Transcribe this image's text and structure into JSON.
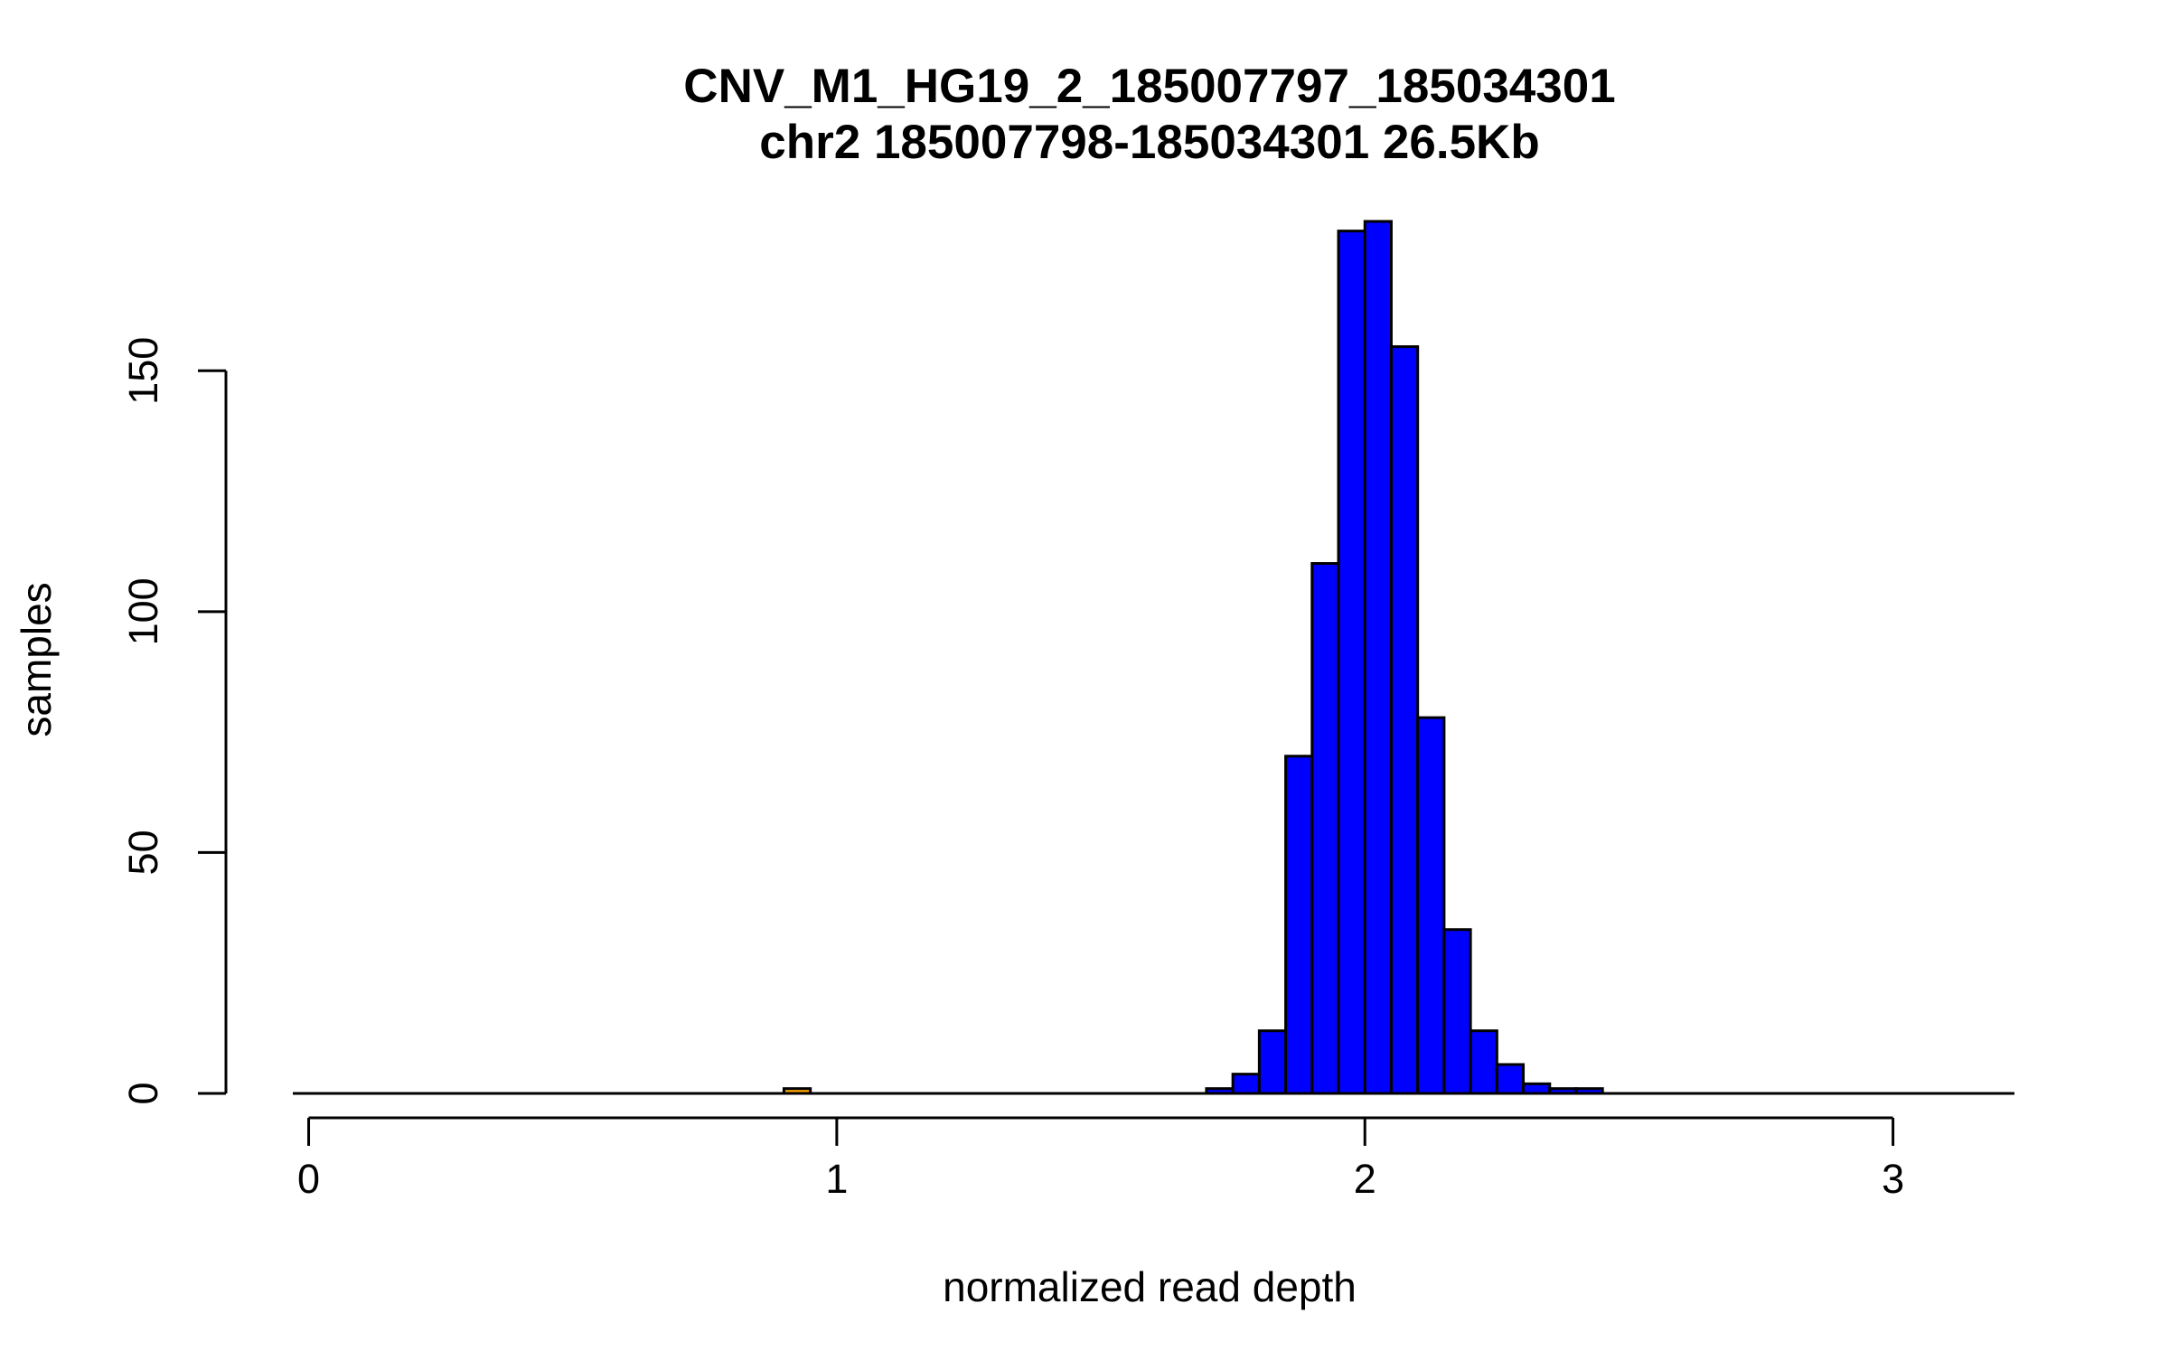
{
  "chart_data": {
    "type": "bar",
    "title": "CNV_M1_HG19_2_185007797_185034301",
    "subtitle": "chr2 185007798-185034301 26.5Kb",
    "xlabel": "normalized read depth",
    "ylabel": "samples",
    "xlim": [
      -0.03,
      3.23
    ],
    "ylim": [
      0,
      181
    ],
    "x_ticks": [
      "0",
      "1",
      "2",
      "3"
    ],
    "y_ticks": [
      "0",
      "50",
      "100",
      "150"
    ],
    "grid": false,
    "bin_width": 0.05,
    "series": [
      {
        "color": "#0000ff",
        "bins": [
          {
            "x0": 1.7,
            "x1": 1.75,
            "count": 1
          },
          {
            "x0": 1.75,
            "x1": 1.8,
            "count": 4
          },
          {
            "x0": 1.8,
            "x1": 1.85,
            "count": 13
          },
          {
            "x0": 1.85,
            "x1": 1.9,
            "count": 70
          },
          {
            "x0": 1.9,
            "x1": 1.95,
            "count": 110
          },
          {
            "x0": 1.95,
            "x1": 2.0,
            "count": 179
          },
          {
            "x0": 2.0,
            "x1": 2.05,
            "count": 181
          },
          {
            "x0": 2.05,
            "x1": 2.1,
            "count": 155
          },
          {
            "x0": 2.1,
            "x1": 2.15,
            "count": 78
          },
          {
            "x0": 2.15,
            "x1": 2.2,
            "count": 34
          },
          {
            "x0": 2.2,
            "x1": 2.25,
            "count": 13
          },
          {
            "x0": 2.25,
            "x1": 2.3,
            "count": 6
          },
          {
            "x0": 2.3,
            "x1": 2.35,
            "count": 2
          },
          {
            "x0": 2.35,
            "x1": 2.4,
            "count": 1
          },
          {
            "x0": 2.4,
            "x1": 2.45,
            "count": 1
          }
        ]
      },
      {
        "color": "#ffa500",
        "bins": [
          {
            "x0": 0.9,
            "x1": 0.95,
            "count": 1
          }
        ]
      }
    ]
  }
}
